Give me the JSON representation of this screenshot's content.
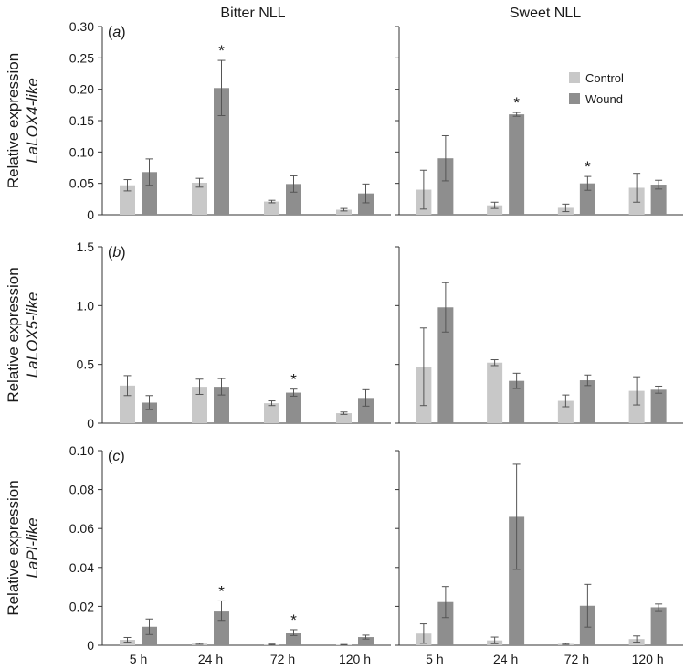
{
  "column_titles": [
    "Bitter NLL",
    "Sweet NLL"
  ],
  "colors": {
    "Control": "#c8c8c8",
    "Wound": "#8e8e8e",
    "axis": "#333333",
    "error": "#555555"
  },
  "legend": {
    "items": [
      "Control",
      "Wound"
    ],
    "position": "top-right of panel (a) Sweet NLL"
  },
  "chart_data": [
    {
      "panel": "a",
      "column": "Bitter NLL",
      "type": "bar",
      "tag_letter": "a",
      "ylabel": "Relative expression",
      "ylabel_gene": "LaLOX4-like",
      "categories": [
        "5 h",
        "24 h",
        "72 h",
        "120 h"
      ],
      "ylim": [
        0,
        0.3
      ],
      "yticks": [
        0,
        0.05,
        0.1,
        0.15,
        0.2,
        0.25,
        0.3
      ],
      "ytick_labels": [
        "0",
        "0.05",
        "0.10",
        "0.15",
        "0.20",
        "0.25",
        "0.30"
      ],
      "series": [
        {
          "name": "Control",
          "values": [
            0.047,
            0.051,
            0.021,
            0.008
          ],
          "errors": [
            0.009,
            0.007,
            0.002,
            0.002
          ]
        },
        {
          "name": "Wound",
          "values": [
            0.068,
            0.202,
            0.049,
            0.034
          ],
          "errors": [
            0.021,
            0.044,
            0.013,
            0.015
          ]
        }
      ],
      "significant": [
        [
          1,
          1
        ]
      ],
      "star_label": "*"
    },
    {
      "panel": "a",
      "column": "Sweet NLL",
      "type": "bar",
      "categories": [
        "5 h",
        "24 h",
        "72 h",
        "120 h"
      ],
      "ylim": [
        0,
        0.3
      ],
      "yticks": [
        0,
        0.05,
        0.1,
        0.15,
        0.2,
        0.25,
        0.3
      ],
      "series": [
        {
          "name": "Control",
          "values": [
            0.04,
            0.015,
            0.011,
            0.043
          ],
          "errors": [
            0.031,
            0.005,
            0.006,
            0.023
          ]
        },
        {
          "name": "Wound",
          "values": [
            0.09,
            0.16,
            0.05,
            0.048
          ],
          "errors": [
            0.036,
            0.003,
            0.011,
            0.007
          ]
        }
      ],
      "significant": [
        [
          1,
          1
        ],
        [
          1,
          2
        ]
      ],
      "star_label": "*"
    },
    {
      "panel": "b",
      "column": "Bitter NLL",
      "type": "bar",
      "tag_letter": "b",
      "ylabel": "Relative expression",
      "ylabel_gene": "LaLOX5-like",
      "categories": [
        "5 h",
        "24 h",
        "72 h",
        "120 h"
      ],
      "ylim": [
        0,
        1.5
      ],
      "yticks": [
        0,
        0.5,
        1.0,
        1.5
      ],
      "ytick_labels": [
        "0",
        "0.5",
        "1.0",
        "1.5"
      ],
      "series": [
        {
          "name": "Control",
          "values": [
            0.32,
            0.31,
            0.17,
            0.085
          ],
          "errors": [
            0.085,
            0.065,
            0.02,
            0.01
          ]
        },
        {
          "name": "Wound",
          "values": [
            0.175,
            0.31,
            0.26,
            0.215
          ],
          "errors": [
            0.06,
            0.07,
            0.03,
            0.07
          ]
        }
      ],
      "significant": [
        [
          1,
          2
        ]
      ],
      "star_label": "*"
    },
    {
      "panel": "b",
      "column": "Sweet NLL",
      "type": "bar",
      "categories": [
        "5 h",
        "24 h",
        "72 h",
        "120 h"
      ],
      "ylim": [
        0,
        1.5
      ],
      "yticks": [
        0,
        0.5,
        1.0,
        1.5
      ],
      "series": [
        {
          "name": "Control",
          "values": [
            0.48,
            0.515,
            0.19,
            0.275
          ],
          "errors": [
            0.33,
            0.025,
            0.05,
            0.12
          ]
        },
        {
          "name": "Wound",
          "values": [
            0.985,
            0.36,
            0.365,
            0.285
          ],
          "errors": [
            0.21,
            0.065,
            0.045,
            0.03
          ]
        }
      ],
      "significant": [],
      "star_label": "*"
    },
    {
      "panel": "c",
      "column": "Bitter NLL",
      "type": "bar",
      "tag_letter": "c",
      "ylabel": "Relative expression",
      "ylabel_gene": "LaPI-like",
      "categories": [
        "5 h",
        "24 h",
        "72 h",
        "120 h"
      ],
      "ylim": [
        0,
        0.1
      ],
      "yticks": [
        0,
        0.02,
        0.04,
        0.06,
        0.08,
        0.1
      ],
      "ytick_labels": [
        "0",
        "0.02",
        "0.04",
        "0.06",
        "0.08",
        "0.10"
      ],
      "series": [
        {
          "name": "Control",
          "values": [
            0.0028,
            0.0008,
            0.0004,
            0.0003
          ],
          "errors": [
            0.0012,
            0.0003,
            0.0002,
            0.0001
          ]
        },
        {
          "name": "Wound",
          "values": [
            0.0095,
            0.0178,
            0.0065,
            0.0042
          ],
          "errors": [
            0.004,
            0.005,
            0.0015,
            0.001
          ]
        }
      ],
      "significant": [
        [
          1,
          1
        ],
        [
          1,
          2
        ]
      ],
      "star_label": "*"
    },
    {
      "panel": "c",
      "column": "Sweet NLL",
      "type": "bar",
      "categories": [
        "5 h",
        "24 h",
        "72 h",
        "120 h"
      ],
      "ylim": [
        0,
        0.1
      ],
      "yticks": [
        0,
        0.02,
        0.04,
        0.06,
        0.08,
        0.1
      ],
      "series": [
        {
          "name": "Control",
          "values": [
            0.006,
            0.0025,
            0.0007,
            0.0032
          ],
          "errors": [
            0.005,
            0.0017,
            0.0003,
            0.0016
          ]
        },
        {
          "name": "Wound",
          "values": [
            0.0222,
            0.066,
            0.0203,
            0.0195
          ],
          "errors": [
            0.008,
            0.027,
            0.011,
            0.0017
          ]
        }
      ],
      "significant": [],
      "star_label": "*"
    }
  ]
}
